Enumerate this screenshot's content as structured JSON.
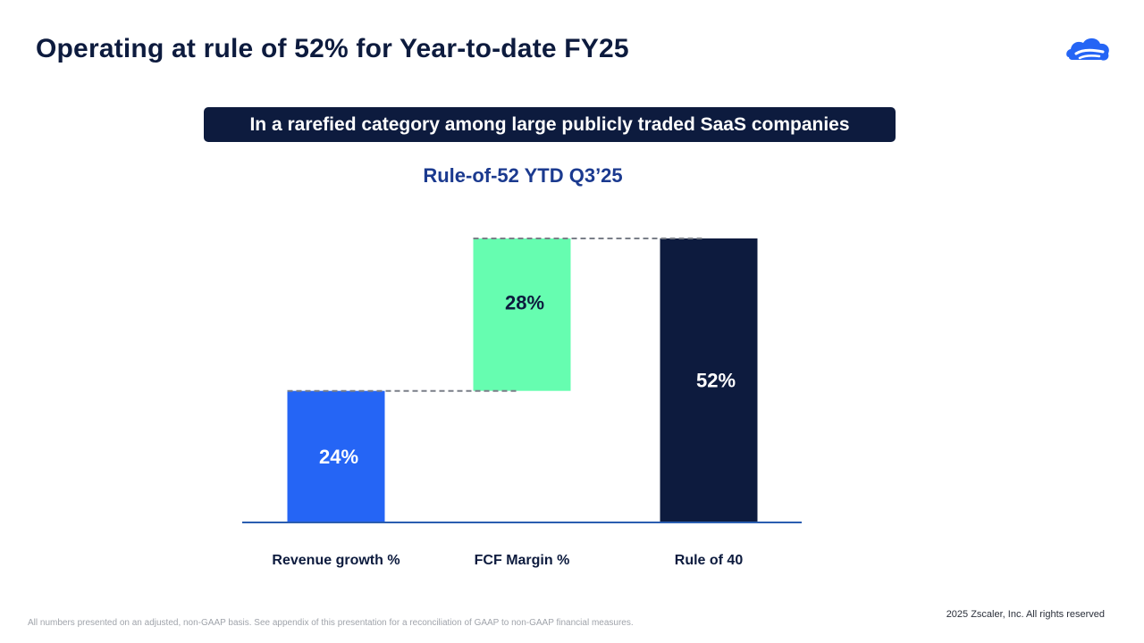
{
  "slide": {
    "title": "Operating at rule of 52% for Year-to-date FY25",
    "banner": "In a rarefied category among large publicly traded SaaS companies",
    "footnote": "All numbers presented on an adjusted, non-GAAP basis. See appendix of this presentation for a reconciliation of GAAP to non-GAAP financial measures.",
    "copyright": "2025 Zscaler, Inc. All rights reserved",
    "logo_icon": "zscaler-cloud-logo-icon"
  },
  "chart_data": {
    "type": "bar",
    "subtype": "waterfall",
    "title": "Rule-of-52 YTD Q3’25",
    "categories": [
      "Revenue growth %",
      "FCF Margin %",
      "Rule of 40"
    ],
    "values": [
      24,
      28,
      52
    ],
    "base": [
      0,
      24,
      0
    ],
    "data_labels": [
      "24%",
      "28%",
      "52%"
    ],
    "ylim": [
      0,
      52
    ],
    "colors": [
      "#2565f5",
      "#66fdb0",
      "#0d1b3e"
    ],
    "label_colors": [
      "#ffffff",
      "#0d1b3e",
      "#ffffff"
    ],
    "connectors": "dashed",
    "grid": false,
    "legend": "none"
  }
}
